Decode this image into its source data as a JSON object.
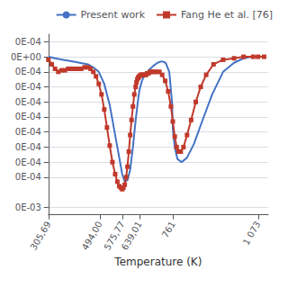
{
  "chart_data": {
    "type": "line",
    "xlabel": "Temperature (K)",
    "xlim": [
      305.69,
      1110
    ],
    "ylim": [
      -0.00105,
      0.00015
    ],
    "xticks": [
      {
        "value": 305.69,
        "label": "305,69"
      },
      {
        "value": 494.0,
        "label": "494,00"
      },
      {
        "value": 575.77,
        "label": "575,77"
      },
      {
        "value": 639.01,
        "label": "639,01"
      },
      761,
      {
        "value": 1073,
        "label": "1 073"
      }
    ],
    "yticks": [
      {
        "value": 0.0001,
        "label": "0E-04"
      },
      {
        "value": 0.0,
        "label": "0E+00"
      },
      {
        "value": -0.0001,
        "label": "0E-04"
      },
      {
        "value": -0.0002,
        "label": "0E-04"
      },
      {
        "value": -0.0003,
        "label": "0E-04"
      },
      {
        "value": -0.0004,
        "label": "0E-04"
      },
      {
        "value": -0.0005,
        "label": "0E-04"
      },
      {
        "value": -0.0006,
        "label": "0E-04"
      },
      {
        "value": -0.0007,
        "label": "0E-04"
      },
      {
        "value": -0.0008,
        "label": "0E-04"
      },
      {
        "value": -0.001,
        "label": "0E-03"
      }
    ],
    "grid": true,
    "legend": "upper right",
    "series": [
      {
        "name": "Present work",
        "color": "#4472C4",
        "marker": "none",
        "x": [
          305.69,
          330,
          360,
          390,
          420,
          450,
          470,
          490,
          510,
          530,
          550,
          565,
          575.77,
          585,
          595,
          605,
          615,
          625,
          635,
          639.01,
          648,
          658,
          668,
          678,
          690,
          705,
          720,
          735,
          748,
          758,
          761,
          768,
          778,
          793,
          813,
          838,
          868,
          905,
          945,
          985,
          1020,
          1050,
          1070,
          1073,
          1090
        ],
        "values": [
          0.0,
          -1e-05,
          -2e-05,
          -3e-05,
          -4e-05,
          -5e-05,
          -7e-05,
          -0.0001,
          -0.00018,
          -0.00032,
          -0.00052,
          -0.00067,
          -0.00078,
          -0.00083,
          -0.00082,
          -0.00075,
          -0.0006,
          -0.00042,
          -0.00027,
          -0.00022,
          -0.00016,
          -0.00012,
          -0.0001,
          -8e-05,
          -6e-05,
          -4e-05,
          -3e-05,
          -4e-05,
          -0.0001,
          -0.0003,
          -0.00048,
          -0.0006,
          -0.00068,
          -0.0007,
          -0.00067,
          -0.00058,
          -0.00043,
          -0.00025,
          -0.0001,
          -4e-05,
          -1e-05,
          0.0,
          0.0,
          0.0,
          0.0
        ]
      },
      {
        "name": "Fang He et al. [76]",
        "color": "#C0392B",
        "marker": "square",
        "x": [
          305.69,
          318,
          330,
          342,
          354,
          366,
          378,
          390,
          402,
          414,
          426,
          438,
          450,
          460,
          470,
          480,
          490,
          500,
          510,
          520,
          530,
          540,
          550,
          558,
          565,
          571,
          575.77,
          580,
          585,
          590,
          595,
          600,
          605,
          610,
          615,
          620,
          625,
          628,
          631,
          634,
          637,
          639.01,
          643,
          647,
          651,
          655,
          659,
          663,
          667,
          672,
          678,
          685,
          693,
          702,
          712,
          722,
          733,
          744,
          754,
          761,
          768,
          775,
          782,
          790,
          800,
          813,
          828,
          845,
          863,
          883,
          910,
          945,
          985,
          1020,
          1055,
          1073,
          1095
        ],
        "values": [
          -2e-05,
          -5e-05,
          -8e-05,
          -0.0001,
          -9e-05,
          -9e-05,
          -8e-05,
          -8e-05,
          -8e-05,
          -8e-05,
          -8e-05,
          -7e-05,
          -7e-05,
          -8e-05,
          -0.0001,
          -0.00013,
          -0.00018,
          -0.00025,
          -0.00035,
          -0.00047,
          -0.00059,
          -0.0007,
          -0.00078,
          -0.00083,
          -0.00086,
          -0.00087,
          -0.00088,
          -0.00087,
          -0.00085,
          -0.0008,
          -0.00073,
          -0.00063,
          -0.00052,
          -0.00042,
          -0.00033,
          -0.00025,
          -0.0002,
          -0.00017,
          -0.00015,
          -0.00014,
          -0.00013,
          -0.00013,
          -0.00012,
          -0.00012,
          -0.00012,
          -0.00012,
          -0.00012,
          -0.00012,
          -0.00011,
          -0.00011,
          -0.0001,
          -0.0001,
          -0.0001,
          -0.0001,
          -0.0001,
          -0.00012,
          -0.00016,
          -0.00023,
          -0.00033,
          -0.00043,
          -0.00053,
          -0.0006,
          -0.00063,
          -0.00063,
          -0.0006,
          -0.00052,
          -0.00042,
          -0.0003,
          -0.0002,
          -0.00012,
          -5e-05,
          -2e-05,
          -1e-05,
          0.0,
          0.0,
          0.0,
          0.0
        ]
      }
    ]
  }
}
